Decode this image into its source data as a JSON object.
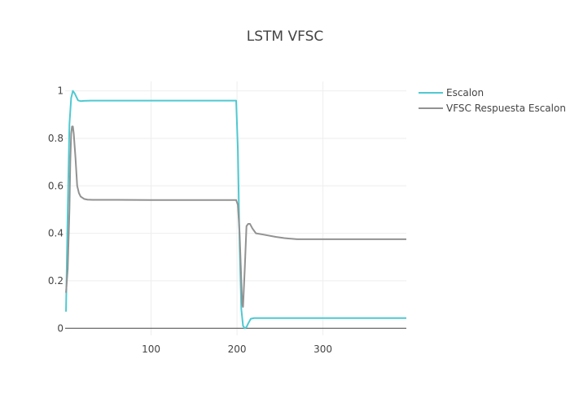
{
  "chart_data": {
    "type": "line",
    "title": "LSTM VFSC",
    "xlabel": "",
    "ylabel": "",
    "xlim": [
      0,
      397
    ],
    "ylim": [
      -0.03,
      1.04
    ],
    "x_ticks": [
      100,
      200,
      300
    ],
    "y_ticks": [
      0,
      0.2,
      0.4,
      0.6,
      0.8,
      1
    ],
    "y_tick_labels": [
      "0",
      "0.2",
      "0.4",
      "0.6",
      "0.8",
      "1"
    ],
    "x_tick_labels": [
      "100",
      "200",
      "300"
    ],
    "grid": true,
    "legend_position": "top-right",
    "series": [
      {
        "name": "Escalon",
        "color": "#4fc9d1",
        "x": [
          1,
          3,
          5,
          7,
          9,
          11,
          13,
          15,
          18,
          22,
          30,
          40,
          60,
          100,
          150,
          195,
          199,
          201,
          203,
          205,
          207,
          209,
          211,
          213,
          216,
          220,
          230,
          260,
          300,
          350,
          397
        ],
        "y": [
          0.07,
          0.5,
          0.86,
          0.97,
          1.0,
          0.99,
          0.975,
          0.96,
          0.957,
          0.958,
          0.959,
          0.959,
          0.959,
          0.959,
          0.959,
          0.959,
          0.959,
          0.75,
          0.35,
          0.08,
          0.01,
          0.0,
          0.005,
          0.02,
          0.04,
          0.043,
          0.043,
          0.043,
          0.043,
          0.043,
          0.043
        ]
      },
      {
        "name": "VFSC Respuesta Escalon",
        "color": "#929292",
        "x": [
          1,
          3,
          5,
          6,
          7,
          8,
          9,
          10,
          12,
          14,
          16,
          18,
          22,
          26,
          32,
          40,
          60,
          100,
          150,
          199,
          201,
          203,
          205,
          206,
          207,
          209,
          211,
          213,
          215,
          218,
          222,
          230,
          245,
          255,
          260,
          270,
          300,
          350,
          397
        ],
        "y": [
          0.15,
          0.25,
          0.5,
          0.7,
          0.82,
          0.85,
          0.85,
          0.82,
          0.72,
          0.6,
          0.57,
          0.555,
          0.545,
          0.542,
          0.541,
          0.541,
          0.541,
          0.54,
          0.54,
          0.54,
          0.52,
          0.4,
          0.2,
          0.1,
          0.09,
          0.25,
          0.43,
          0.44,
          0.44,
          0.42,
          0.4,
          0.395,
          0.385,
          0.38,
          0.378,
          0.375,
          0.375,
          0.375,
          0.375
        ]
      }
    ]
  }
}
